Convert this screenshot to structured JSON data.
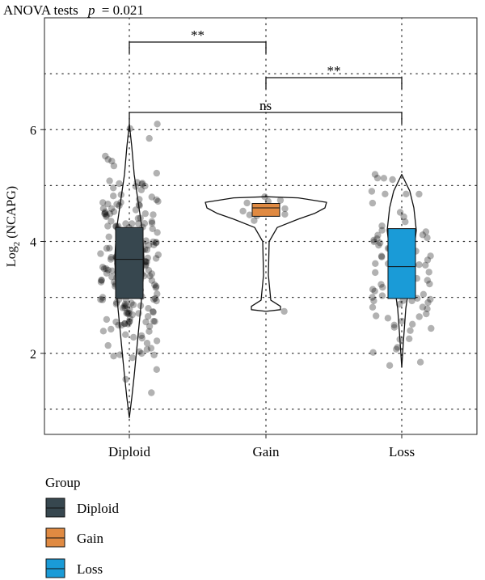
{
  "chart_data": {
    "type": "violin-box",
    "title": "ANOVA tests",
    "subtitle_p_label": "p",
    "subtitle_p_value": "= 0.021",
    "ylabel_prefix": "Log",
    "ylabel_sub": "2",
    "ylabel_suffix": " (NCAPG)",
    "xlabel": "",
    "ylim": [
      0.55,
      8.0
    ],
    "yticks": [
      2,
      4,
      6
    ],
    "ytick_labels": [
      "2",
      "4",
      "6"
    ],
    "grid": "dotted",
    "legend_position": "bottom",
    "legend_title": "Group",
    "categories": [
      "Diploid",
      "Gain",
      "Loss"
    ],
    "colors": {
      "Diploid": "#37474f",
      "Gain": "#e08a42",
      "Loss": "#1a9bd7"
    },
    "box_stats": [
      {
        "name": "Diploid",
        "q1": 2.98,
        "median": 3.68,
        "q3": 4.25,
        "min": 0.85,
        "max": 6.1
      },
      {
        "name": "Gain",
        "q1": 4.45,
        "median": 4.6,
        "q3": 4.68,
        "min": 2.75,
        "max": 4.8
      },
      {
        "name": "Loss",
        "q1": 2.98,
        "median": 3.55,
        "q3": 4.23,
        "min": 1.75,
        "max": 5.2
      }
    ],
    "significance": [
      {
        "groups": [
          "Diploid",
          "Gain"
        ],
        "label": "**"
      },
      {
        "groups": [
          "Gain",
          "Loss"
        ],
        "label": "**"
      },
      {
        "groups": [
          "Diploid",
          "Loss"
        ],
        "label": "ns"
      }
    ]
  }
}
